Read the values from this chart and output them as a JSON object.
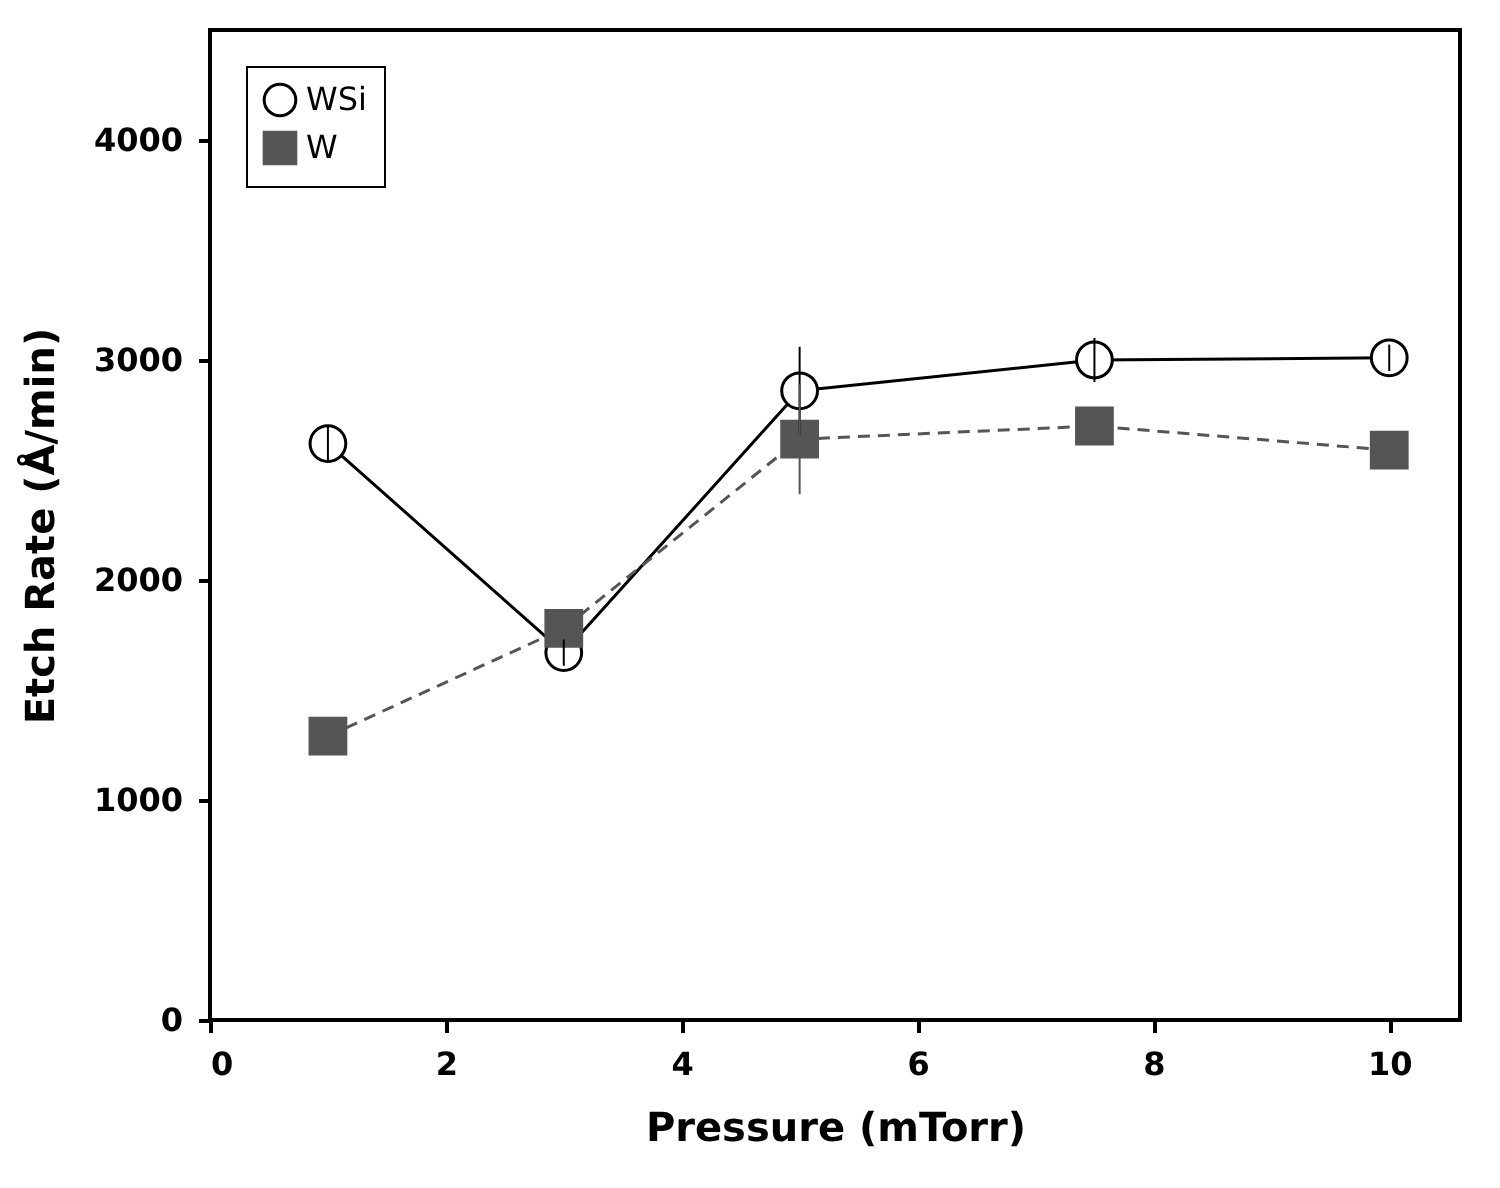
{
  "chart_data": {
    "type": "line",
    "xlabel": "Pressure  (mTorr)",
    "ylabel": "Etch Rate  (Å/min)",
    "xlim": [
      0,
      10.6
    ],
    "ylim": [
      0,
      4500
    ],
    "xticks": [
      0,
      2,
      4,
      6,
      8,
      10
    ],
    "yticks": [
      0,
      1000,
      2000,
      3000,
      4000
    ],
    "grid": false,
    "legend": "top left",
    "series": [
      {
        "name": "WSi",
        "color": "#000000",
        "x": [
          1,
          3,
          5,
          7.5,
          10
        ],
        "values": [
          2620,
          1670,
          2860,
          3000,
          3010
        ],
        "errors": [
          80,
          60,
          200,
          100,
          60
        ],
        "marker": "circle",
        "line_style": "solid"
      },
      {
        "name": "W",
        "color": "#555555",
        "x": [
          1,
          3,
          5,
          7.5,
          10
        ],
        "values": [
          1290,
          1780,
          2640,
          2700,
          2590
        ],
        "errors": [
          null,
          null,
          250,
          null,
          null
        ],
        "marker": "square",
        "line_style": "dashed"
      }
    ]
  }
}
